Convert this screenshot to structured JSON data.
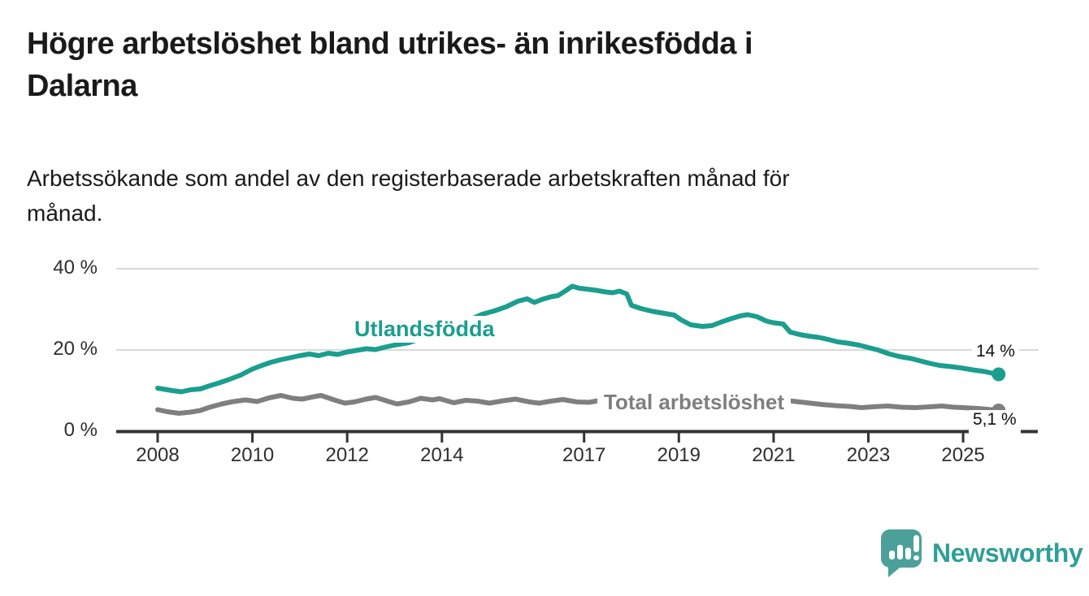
{
  "title": {
    "lines": [
      "Högre arbetslöshet bland utrikes- än inrikesfödda i",
      "Dalarna"
    ]
  },
  "subtitle": {
    "lines": [
      "Arbetssökande som andel av den registerbaserade arbetskraften månad för",
      "månad."
    ]
  },
  "branding": {
    "logo_text": "Newsworthy",
    "logo_icon": "speech-bubble-bar-chart-icon",
    "logo_color": "#4ba09a",
    "logo_text_color": "#2f9f96"
  },
  "colors": {
    "accent_teal": "#1b9e8e",
    "series_gray": "#7f7f7f",
    "grid": "#d9d9d9",
    "axis": "#333333",
    "text": "#1a1a1a"
  },
  "chart_data": {
    "type": "line",
    "title": "Högre arbetslöshet bland utrikes- än inrikesfödda i Dalarna",
    "subtitle": "Arbetssökande som andel av den registerbaserade arbetskraften månad för månad.",
    "xlabel": "",
    "ylabel": "",
    "unit": "%",
    "grid": "horizontal",
    "legend_position": "inline-labels",
    "x_axis": {
      "ticks": [
        2008,
        2010,
        2012,
        2014,
        2017,
        2019,
        2021,
        2023,
        2025
      ],
      "range": [
        2007.1,
        2026.6
      ]
    },
    "y_axis": {
      "ticks": [
        0,
        20,
        40
      ],
      "tick_labels": [
        "0 %",
        "20 %",
        "40 %"
      ],
      "range": [
        0,
        40
      ]
    },
    "series": [
      {
        "name": "Utlandsfödda",
        "color": "#1b9e8e",
        "end_label": "14 %",
        "end_value": 14.0,
        "points": [
          [
            2008.0,
            10.6
          ],
          [
            2008.25,
            10.1
          ],
          [
            2008.5,
            9.7
          ],
          [
            2008.7,
            10.2
          ],
          [
            2008.9,
            10.4
          ],
          [
            2009.1,
            11.2
          ],
          [
            2009.3,
            11.9
          ],
          [
            2009.5,
            12.7
          ],
          [
            2009.75,
            13.8
          ],
          [
            2010.0,
            15.3
          ],
          [
            2010.2,
            16.2
          ],
          [
            2010.4,
            17.0
          ],
          [
            2010.6,
            17.6
          ],
          [
            2010.8,
            18.1
          ],
          [
            2011.0,
            18.6
          ],
          [
            2011.2,
            19.0
          ],
          [
            2011.4,
            18.6
          ],
          [
            2011.6,
            19.2
          ],
          [
            2011.8,
            18.9
          ],
          [
            2012.0,
            19.5
          ],
          [
            2012.2,
            19.9
          ],
          [
            2012.4,
            20.3
          ],
          [
            2012.6,
            20.1
          ],
          [
            2012.8,
            20.7
          ],
          [
            2013.0,
            21.2
          ],
          [
            2013.3,
            21.8
          ],
          [
            2013.6,
            23.0
          ],
          [
            2013.9,
            24.2
          ],
          [
            2014.2,
            25.5
          ],
          [
            2014.5,
            27.0
          ],
          [
            2014.85,
            28.8
          ],
          [
            2015.1,
            29.6
          ],
          [
            2015.35,
            30.6
          ],
          [
            2015.6,
            32.0
          ],
          [
            2015.8,
            32.6
          ],
          [
            2015.95,
            31.7
          ],
          [
            2016.1,
            32.4
          ],
          [
            2016.3,
            33.1
          ],
          [
            2016.45,
            33.4
          ],
          [
            2016.6,
            34.5
          ],
          [
            2016.75,
            35.7
          ],
          [
            2016.9,
            35.2
          ],
          [
            2017.05,
            35.0
          ],
          [
            2017.25,
            34.7
          ],
          [
            2017.45,
            34.3
          ],
          [
            2017.6,
            34.1
          ],
          [
            2017.75,
            34.5
          ],
          [
            2017.9,
            33.8
          ],
          [
            2018.0,
            31.0
          ],
          [
            2018.2,
            30.2
          ],
          [
            2018.45,
            29.5
          ],
          [
            2018.7,
            29.0
          ],
          [
            2018.9,
            28.6
          ],
          [
            2019.05,
            27.4
          ],
          [
            2019.25,
            26.2
          ],
          [
            2019.5,
            25.8
          ],
          [
            2019.7,
            26.0
          ],
          [
            2019.9,
            26.9
          ],
          [
            2020.1,
            27.7
          ],
          [
            2020.3,
            28.4
          ],
          [
            2020.45,
            28.7
          ],
          [
            2020.65,
            28.2
          ],
          [
            2020.85,
            27.1
          ],
          [
            2021.0,
            26.7
          ],
          [
            2021.2,
            26.4
          ],
          [
            2021.35,
            24.4
          ],
          [
            2021.55,
            23.8
          ],
          [
            2021.75,
            23.4
          ],
          [
            2021.95,
            23.1
          ],
          [
            2022.15,
            22.6
          ],
          [
            2022.35,
            22.0
          ],
          [
            2022.55,
            21.7
          ],
          [
            2022.8,
            21.2
          ],
          [
            2023.0,
            20.6
          ],
          [
            2023.2,
            20.0
          ],
          [
            2023.45,
            19.0
          ],
          [
            2023.65,
            18.4
          ],
          [
            2023.9,
            17.9
          ],
          [
            2024.1,
            17.3
          ],
          [
            2024.3,
            16.7
          ],
          [
            2024.5,
            16.2
          ],
          [
            2024.75,
            15.9
          ],
          [
            2025.0,
            15.5
          ],
          [
            2025.2,
            15.1
          ],
          [
            2025.45,
            14.7
          ],
          [
            2025.6,
            14.3
          ],
          [
            2025.75,
            14.0
          ]
        ]
      },
      {
        "name": "Total arbetslöshet",
        "color": "#7f7f7f",
        "end_label": "5,1 %",
        "end_value": 5.1,
        "points": [
          [
            2008.0,
            5.3
          ],
          [
            2008.2,
            4.8
          ],
          [
            2008.45,
            4.4
          ],
          [
            2008.7,
            4.7
          ],
          [
            2008.9,
            5.1
          ],
          [
            2009.1,
            5.9
          ],
          [
            2009.35,
            6.7
          ],
          [
            2009.6,
            7.3
          ],
          [
            2009.85,
            7.7
          ],
          [
            2010.1,
            7.3
          ],
          [
            2010.35,
            8.2
          ],
          [
            2010.6,
            8.8
          ],
          [
            2010.85,
            8.1
          ],
          [
            2011.05,
            7.9
          ],
          [
            2011.3,
            8.5
          ],
          [
            2011.45,
            8.8
          ],
          [
            2011.7,
            7.8
          ],
          [
            2011.95,
            6.9
          ],
          [
            2012.15,
            7.2
          ],
          [
            2012.4,
            7.9
          ],
          [
            2012.6,
            8.3
          ],
          [
            2012.85,
            7.4
          ],
          [
            2013.05,
            6.7
          ],
          [
            2013.3,
            7.2
          ],
          [
            2013.55,
            8.1
          ],
          [
            2013.8,
            7.7
          ],
          [
            2013.95,
            8.0
          ],
          [
            2014.25,
            7.0
          ],
          [
            2014.5,
            7.6
          ],
          [
            2014.75,
            7.4
          ],
          [
            2015.0,
            6.9
          ],
          [
            2015.3,
            7.5
          ],
          [
            2015.55,
            7.9
          ],
          [
            2015.85,
            7.2
          ],
          [
            2016.05,
            6.9
          ],
          [
            2016.3,
            7.4
          ],
          [
            2016.55,
            7.8
          ],
          [
            2016.85,
            7.2
          ],
          [
            2017.1,
            7.1
          ],
          [
            2017.35,
            7.6
          ],
          [
            2017.6,
            7.7
          ],
          [
            2017.9,
            7.0
          ],
          [
            2018.2,
            6.8
          ],
          [
            2018.5,
            7.2
          ],
          [
            2018.8,
            6.7
          ],
          [
            2019.1,
            6.6
          ],
          [
            2019.4,
            6.9
          ],
          [
            2019.7,
            6.8
          ],
          [
            2020.0,
            7.2
          ],
          [
            2020.3,
            8.0
          ],
          [
            2020.5,
            8.4
          ],
          [
            2020.8,
            8.1
          ],
          [
            2021.1,
            7.7
          ],
          [
            2021.4,
            7.4
          ],
          [
            2021.7,
            7.0
          ],
          [
            2022.0,
            6.6
          ],
          [
            2022.3,
            6.3
          ],
          [
            2022.6,
            6.1
          ],
          [
            2022.85,
            5.8
          ],
          [
            2023.1,
            6.0
          ],
          [
            2023.4,
            6.2
          ],
          [
            2023.7,
            5.9
          ],
          [
            2024.0,
            5.8
          ],
          [
            2024.3,
            6.0
          ],
          [
            2024.55,
            6.2
          ],
          [
            2024.8,
            5.9
          ],
          [
            2025.0,
            5.8
          ],
          [
            2025.3,
            5.6
          ],
          [
            2025.5,
            5.4
          ],
          [
            2025.75,
            5.1
          ]
        ]
      }
    ]
  }
}
